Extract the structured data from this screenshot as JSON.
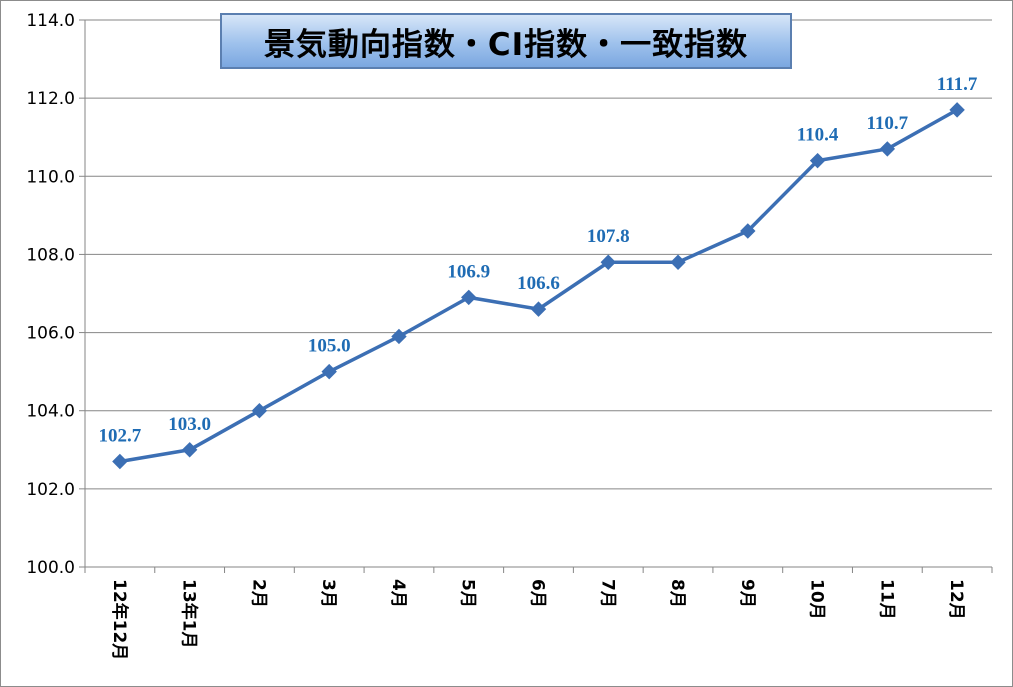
{
  "chart_data": {
    "type": "line",
    "title": "景気動向指数・CI指数・一致指数",
    "categories": [
      "12年12月",
      "13年1月",
      "2月",
      "3月",
      "4月",
      "5月",
      "6月",
      "7月",
      "8月",
      "9月",
      "10月",
      "11月",
      "12月"
    ],
    "series": [
      {
        "values": [
          102.7,
          103.0,
          104.0,
          105.0,
          105.9,
          106.9,
          106.6,
          107.8,
          107.8,
          108.6,
          110.4,
          110.7,
          111.7
        ]
      }
    ],
    "data_labels": [
      "102.7",
      "103.0",
      "",
      "105.0",
      "",
      "106.9",
      "106.6",
      "107.8",
      "",
      "",
      "110.4",
      "110.7",
      "111.7"
    ],
    "y_ticks": [
      "100.0",
      "102.0",
      "104.0",
      "106.0",
      "108.0",
      "110.0",
      "112.0",
      "114.0"
    ],
    "ylim": [
      100,
      114
    ],
    "grid": "horizontal",
    "legend": "none",
    "xlabel": "",
    "ylabel": "",
    "colors": {
      "line": "#3c6fb4",
      "marker": "#3c6fb4",
      "data_label": "#1f6cb4",
      "grid": "#868686",
      "title_bg": "#9ec1ec",
      "title_border": "#5b7fb0"
    }
  }
}
